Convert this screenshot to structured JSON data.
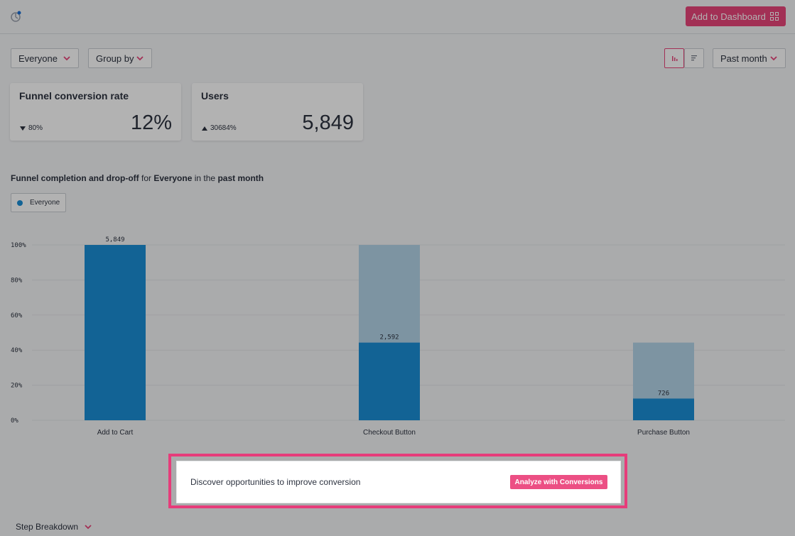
{
  "header": {
    "add_dashboard_label": "Add to Dashboard"
  },
  "filters": {
    "segment": "Everyone",
    "group_by": "Group by",
    "date_range": "Past month"
  },
  "cards": [
    {
      "title": "Funnel conversion rate",
      "delta": "80%",
      "delta_direction": "down",
      "value": "12%"
    },
    {
      "title": "Users",
      "delta": "30684%",
      "delta_direction": "up",
      "value": "5,849"
    }
  ],
  "chart_heading": {
    "prefix": "Funnel completion and drop-off",
    "for": "for",
    "segment": "Everyone",
    "in_the": "in the",
    "period": "past month"
  },
  "legend": {
    "label": "Everyone"
  },
  "chart_data": {
    "type": "bar",
    "categories": [
      "Add to Cart",
      "Checkout Button",
      "Purchase Button"
    ],
    "series": [
      {
        "name": "Everyone",
        "values": [
          100,
          44.3,
          12.4
        ],
        "labels": [
          "5,849",
          "2,592",
          "726"
        ]
      }
    ],
    "dropoff_ceiling": [
      100,
      100,
      44.3
    ],
    "y_ticks": [
      "0%",
      "20%",
      "40%",
      "60%",
      "80%",
      "100%"
    ],
    "ylim": [
      0,
      100
    ],
    "grid": true,
    "colors": {
      "converted": "#1a8ed6",
      "dropoff": "#b3d4e8"
    }
  },
  "callout": {
    "text": "Discover opportunities to improve conversion",
    "button_label": "Analyze with Conversions"
  },
  "step_breakdown": {
    "label": "Step Breakdown"
  },
  "colors": {
    "accent": "#e8457a",
    "bar": "#1a8ed6"
  }
}
